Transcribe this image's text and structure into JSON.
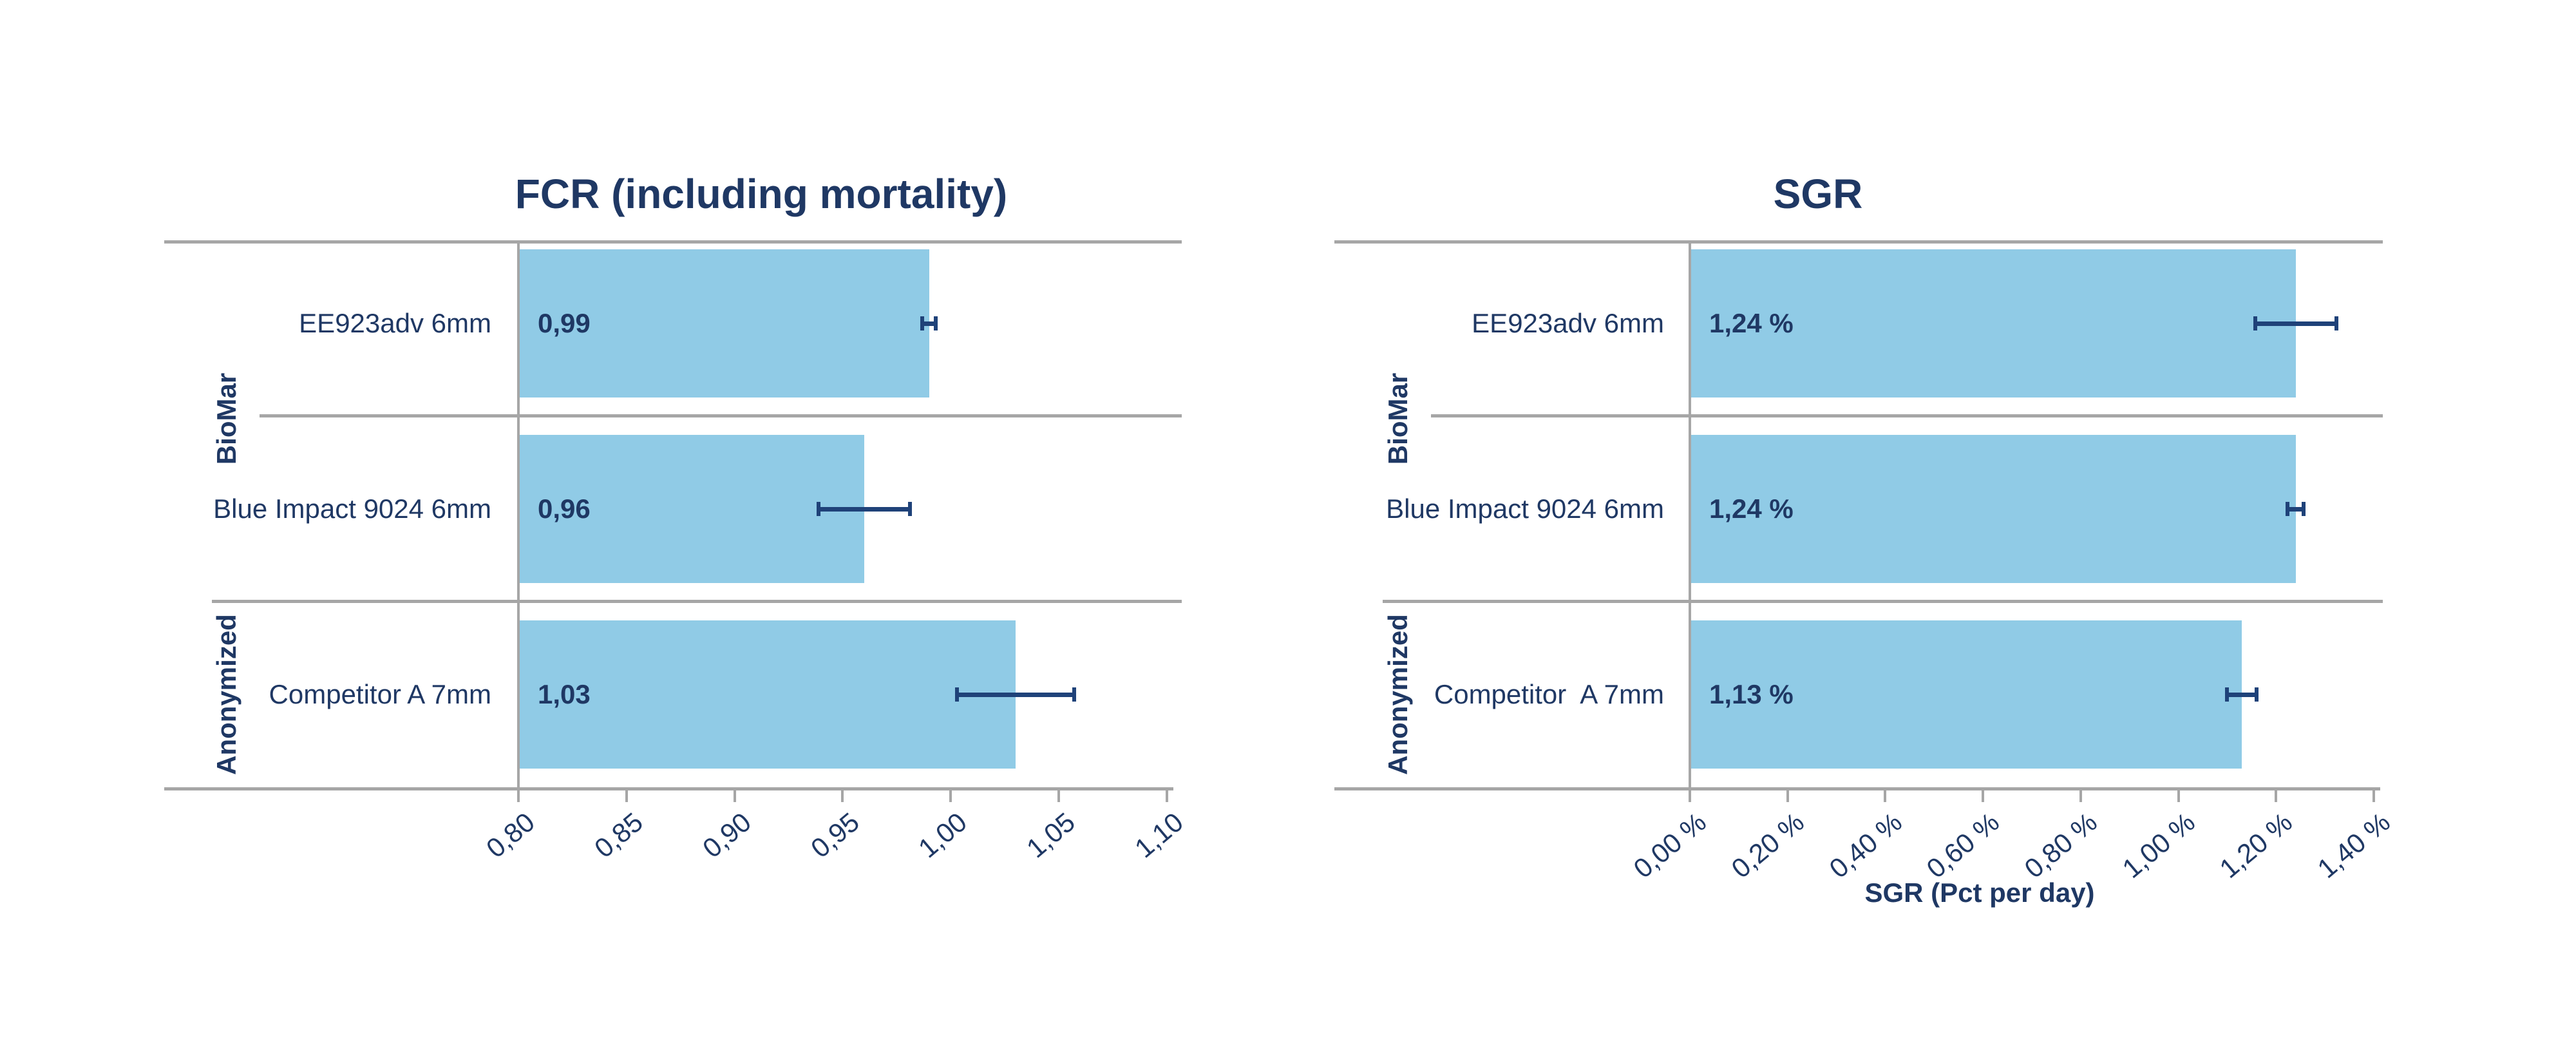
{
  "page": {
    "background": "#FFFFFF"
  },
  "chart_data": [
    {
      "type": "bar",
      "orientation": "horizontal",
      "title": "FCR (including mortality)",
      "groups": [
        {
          "label": "BioMar",
          "items": [
            "EE923adv 6mm",
            "Blue Impact 9024 6mm"
          ]
        },
        {
          "label": "Anonymized",
          "items": [
            "Competitor A 7mm"
          ]
        }
      ],
      "categories": [
        "EE923adv 6mm",
        "Blue Impact 9024 6mm",
        "Competitor A 7mm"
      ],
      "values": [
        0.99,
        0.96,
        1.03
      ],
      "value_labels": [
        "0,99",
        "0,96",
        "1,03"
      ],
      "error_bars_plus_minus": [
        0.004,
        0.022,
        0.028
      ],
      "xlabel": "",
      "xmin": 0.8,
      "xmax": 1.1,
      "ticks": [
        0.8,
        0.85,
        0.9,
        0.95,
        1.0,
        1.05,
        1.1
      ],
      "tick_labels": [
        "0,80",
        "0,85",
        "0,90",
        "0,95",
        "1,00",
        "1,05",
        "1,10"
      ],
      "grid": false,
      "legend": false,
      "colors": {
        "bar": "#90CBE6",
        "text": "#1F3864",
        "line": "#A6A6A6",
        "error": "#1F4279"
      }
    },
    {
      "type": "bar",
      "orientation": "horizontal",
      "title": "SGR",
      "groups": [
        {
          "label": "BioMar",
          "items": [
            "EE923adv 6mm",
            "Blue Impact 9024 6mm"
          ]
        },
        {
          "label": "Anonymized",
          "items": [
            "Competitor  A 7mm"
          ]
        }
      ],
      "categories": [
        "EE923adv 6mm",
        "Blue Impact 9024 6mm",
        "Competitor  A 7mm"
      ],
      "values": [
        1.24,
        1.24,
        1.13
      ],
      "value_labels": [
        "1,24 %",
        "1,24 %",
        "1,13 %"
      ],
      "error_bars_plus_minus": [
        0.087,
        0.02,
        0.034
      ],
      "xlabel": "SGR (Pct per day)",
      "xmin": 0.0,
      "xmax": 1.4,
      "ticks": [
        0.0,
        0.2,
        0.4,
        0.6,
        0.8,
        1.0,
        1.2,
        1.4
      ],
      "tick_labels": [
        "0,00 %",
        "0,20 %",
        "0,40 %",
        "0,60 %",
        "0,80 %",
        "1,00 %",
        "1,20 %",
        "1,40 %"
      ],
      "grid": false,
      "legend": false,
      "colors": {
        "bar": "#90CBE6",
        "text": "#1F3864",
        "line": "#A6A6A6",
        "error": "#1F4279"
      }
    }
  ]
}
